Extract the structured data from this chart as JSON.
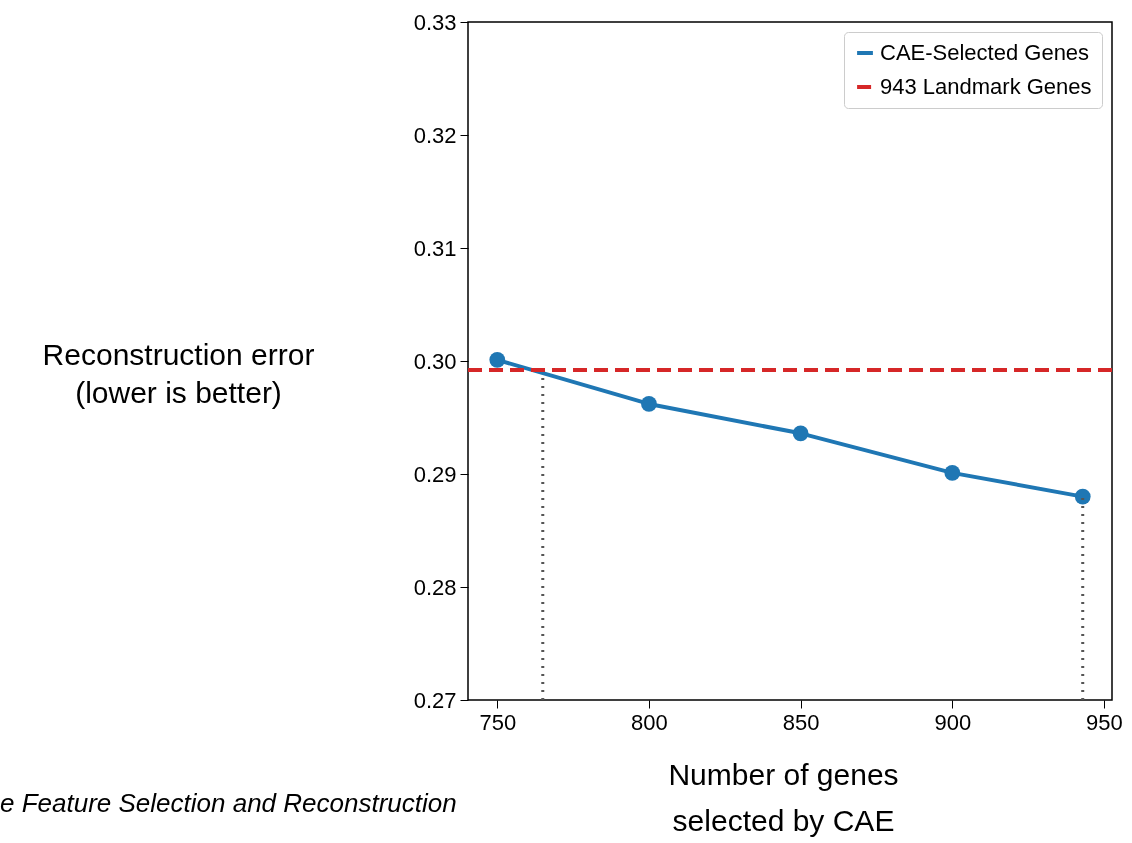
{
  "chart_data": {
    "type": "line",
    "xlabel": "Number of genes\nselected by CAE",
    "ylabel": "Reconstruction error\n(lower is better)",
    "x": [
      750,
      800,
      850,
      900,
      943
    ],
    "series": [
      {
        "name": "CAE-Selected Genes",
        "color": "#1f77b4",
        "values": [
          0.3001,
          0.2962,
          0.2936,
          0.2901,
          0.288
        ]
      }
    ],
    "xlim": [
      740.35,
      952.65
    ],
    "xticks": [
      750,
      800,
      850,
      900,
      950
    ],
    "ylim": [
      0.27,
      0.33
    ],
    "yticks": [
      {
        "value": 0.27,
        "label": "0.27"
      },
      {
        "value": 0.28,
        "label": "0.28"
      },
      {
        "value": 0.29,
        "label": "0.29"
      },
      {
        "value": 0.3,
        "label": "0.30"
      },
      {
        "value": 0.31,
        "label": "0.31"
      },
      {
        "value": 0.32,
        "label": "0.32"
      },
      {
        "value": 0.33,
        "label": "0.33"
      }
    ],
    "ref_lines": [
      {
        "axis": "y",
        "value": 0.2992,
        "label": "943 Landmark Genes",
        "color": "#d62728",
        "line_style": "dashed"
      },
      {
        "axis": "x",
        "value": 765,
        "color": "#555555",
        "line_style": "dotted"
      },
      {
        "axis": "x",
        "value": 943,
        "color": "#555555",
        "line_style": "dotted"
      }
    ],
    "annotations": [
      "e Feature Selection and Reconstruction"
    ],
    "marker": "circle",
    "line_style": "solid",
    "grid": false,
    "legend": "top right"
  }
}
